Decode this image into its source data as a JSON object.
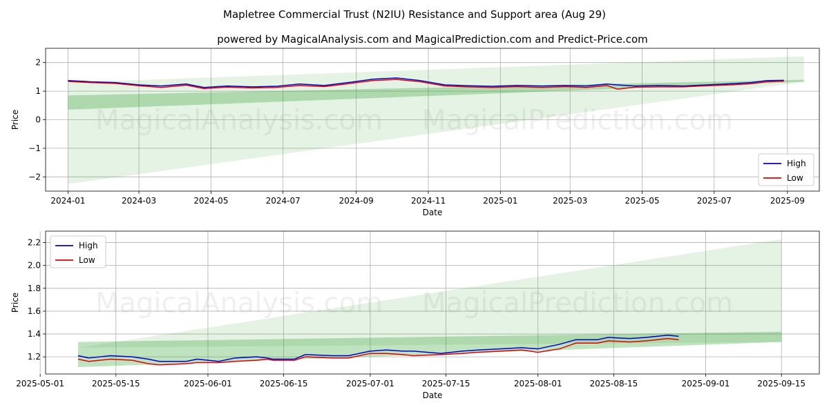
{
  "title": "Mapletree Commercial Trust (N2IU) Resistance and Support area (Aug 29)",
  "subtitle": "powered by MagicalAnalysis.com and MagicalPrediction.com and Predict-Price.com",
  "watermarks": [
    "MagicalAnalysis.com",
    "MagicalPrediction.com"
  ],
  "colors": {
    "high": "#0000cc",
    "low": "#dd0000",
    "band": "#2ca02c"
  },
  "chart_data": [
    {
      "type": "line",
      "xlabel": "Date",
      "ylabel": "Price",
      "x_axis": "date",
      "xlim": [
        "2023-12-13",
        "2025-09-28"
      ],
      "ylim": [
        -2.5,
        2.5
      ],
      "xticks": [
        "2024-01",
        "2024-03",
        "2024-05",
        "2024-07",
        "2024-09",
        "2024-11",
        "2025-01",
        "2025-03",
        "2025-05",
        "2025-07",
        "2025-09"
      ],
      "xtick_dates": [
        "2024-01-01",
        "2024-03-01",
        "2024-05-01",
        "2024-07-01",
        "2024-09-01",
        "2024-11-01",
        "2025-01-01",
        "2025-03-01",
        "2025-05-01",
        "2025-07-01",
        "2025-09-01"
      ],
      "yticks": [
        -2,
        -1,
        0,
        1,
        2
      ],
      "legend": [
        "High",
        "Low"
      ],
      "legend_position": "lower right",
      "grid": true,
      "bands": [
        {
          "start": "2024-01-01",
          "end": "2025-09-15",
          "lower": [
            -2.25,
            1.33
          ],
          "upper": [
            1.3,
            2.22
          ],
          "opacity": 0.12
        },
        {
          "start": "2024-01-01",
          "end": "2025-09-15",
          "lower": [
            0.35,
            1.33
          ],
          "upper": [
            0.85,
            1.4
          ],
          "opacity": 0.3
        }
      ],
      "series": [
        {
          "name": "High",
          "x": [
            "2024-01-01",
            "2024-01-20",
            "2024-02-10",
            "2024-03-01",
            "2024-03-20",
            "2024-04-10",
            "2024-04-25",
            "2024-05-15",
            "2024-06-05",
            "2024-06-25",
            "2024-07-15",
            "2024-08-05",
            "2024-08-25",
            "2024-09-15",
            "2024-10-05",
            "2024-10-25",
            "2024-11-15",
            "2024-12-05",
            "2024-12-25",
            "2025-01-15",
            "2025-02-05",
            "2025-02-25",
            "2025-03-15",
            "2025-04-01",
            "2025-04-10",
            "2025-04-25",
            "2025-05-15",
            "2025-06-05",
            "2025-06-25",
            "2025-07-15",
            "2025-08-01",
            "2025-08-15",
            "2025-08-29"
          ],
          "values": [
            1.37,
            1.33,
            1.3,
            1.22,
            1.18,
            1.25,
            1.13,
            1.18,
            1.15,
            1.17,
            1.25,
            1.2,
            1.3,
            1.42,
            1.46,
            1.37,
            1.22,
            1.19,
            1.17,
            1.2,
            1.18,
            1.2,
            1.18,
            1.25,
            1.22,
            1.18,
            1.2,
            1.18,
            1.22,
            1.26,
            1.3,
            1.37,
            1.38
          ]
        },
        {
          "name": "Low",
          "x": [
            "2024-01-01",
            "2024-01-20",
            "2024-02-10",
            "2024-03-01",
            "2024-03-20",
            "2024-04-10",
            "2024-04-25",
            "2024-05-15",
            "2024-06-05",
            "2024-06-25",
            "2024-07-15",
            "2024-08-05",
            "2024-08-25",
            "2024-09-15",
            "2024-10-05",
            "2024-10-25",
            "2024-11-15",
            "2024-12-05",
            "2024-12-25",
            "2025-01-15",
            "2025-02-05",
            "2025-02-25",
            "2025-03-15",
            "2025-04-01",
            "2025-04-10",
            "2025-04-25",
            "2025-05-15",
            "2025-06-05",
            "2025-06-25",
            "2025-07-15",
            "2025-08-01",
            "2025-08-15",
            "2025-08-29"
          ],
          "values": [
            1.34,
            1.3,
            1.27,
            1.19,
            1.13,
            1.21,
            1.09,
            1.14,
            1.11,
            1.13,
            1.2,
            1.16,
            1.26,
            1.37,
            1.41,
            1.33,
            1.18,
            1.15,
            1.13,
            1.16,
            1.13,
            1.16,
            1.13,
            1.2,
            1.07,
            1.14,
            1.15,
            1.15,
            1.19,
            1.22,
            1.26,
            1.33,
            1.35
          ]
        }
      ]
    },
    {
      "type": "line",
      "xlabel": "Date",
      "ylabel": "Price",
      "x_axis": "date",
      "xlim": [
        "2025-05-02",
        "2025-09-22"
      ],
      "ylim": [
        1.05,
        2.3
      ],
      "xticks": [
        "2025-05-01",
        "2025-05-15",
        "2025-06-01",
        "2025-06-15",
        "2025-07-01",
        "2025-07-15",
        "2025-08-01",
        "2025-08-15",
        "2025-09-01",
        "2025-09-15"
      ],
      "yticks": [
        "1.2",
        "1.4",
        "1.6",
        "1.8",
        "2.0",
        "2.2"
      ],
      "legend": [
        "High",
        "Low"
      ],
      "legend_position": "upper left",
      "grid": true,
      "bands": [
        {
          "start": "2025-05-08",
          "end": "2025-09-15",
          "lower": [
            1.28,
            1.33
          ],
          "upper": [
            1.28,
            2.23
          ],
          "opacity": 0.12
        },
        {
          "start": "2025-05-08",
          "end": "2025-09-15",
          "lower": [
            1.11,
            1.33
          ],
          "upper": [
            1.33,
            1.42
          ],
          "opacity": 0.3
        }
      ],
      "series": [
        {
          "name": "High",
          "x": [
            "2025-05-08",
            "2025-05-10",
            "2025-05-14",
            "2025-05-18",
            "2025-05-21",
            "2025-05-23",
            "2025-05-28",
            "2025-05-30",
            "2025-06-03",
            "2025-06-06",
            "2025-06-10",
            "2025-06-12",
            "2025-06-13",
            "2025-06-17",
            "2025-06-19",
            "2025-06-24",
            "2025-06-27",
            "2025-07-01",
            "2025-07-04",
            "2025-07-07",
            "2025-07-09",
            "2025-07-14",
            "2025-07-18",
            "2025-07-21",
            "2025-07-25",
            "2025-07-29",
            "2025-08-01",
            "2025-08-05",
            "2025-08-08",
            "2025-08-12",
            "2025-08-14",
            "2025-08-18",
            "2025-08-21",
            "2025-08-25",
            "2025-08-27"
          ],
          "values": [
            1.21,
            1.19,
            1.21,
            1.2,
            1.18,
            1.16,
            1.16,
            1.18,
            1.16,
            1.19,
            1.2,
            1.19,
            1.18,
            1.18,
            1.22,
            1.21,
            1.21,
            1.25,
            1.26,
            1.25,
            1.25,
            1.23,
            1.25,
            1.26,
            1.27,
            1.28,
            1.27,
            1.31,
            1.35,
            1.35,
            1.37,
            1.36,
            1.37,
            1.39,
            1.38
          ]
        },
        {
          "name": "Low",
          "x": [
            "2025-05-08",
            "2025-05-10",
            "2025-05-14",
            "2025-05-18",
            "2025-05-21",
            "2025-05-23",
            "2025-05-28",
            "2025-05-30",
            "2025-06-03",
            "2025-06-06",
            "2025-06-10",
            "2025-06-12",
            "2025-06-13",
            "2025-06-17",
            "2025-06-19",
            "2025-06-24",
            "2025-06-27",
            "2025-07-01",
            "2025-07-04",
            "2025-07-07",
            "2025-07-09",
            "2025-07-14",
            "2025-07-18",
            "2025-07-21",
            "2025-07-25",
            "2025-07-29",
            "2025-08-01",
            "2025-08-05",
            "2025-08-08",
            "2025-08-12",
            "2025-08-14",
            "2025-08-18",
            "2025-08-21",
            "2025-08-25",
            "2025-08-27"
          ],
          "values": [
            1.18,
            1.16,
            1.18,
            1.17,
            1.14,
            1.13,
            1.14,
            1.15,
            1.15,
            1.16,
            1.17,
            1.18,
            1.17,
            1.17,
            1.2,
            1.19,
            1.19,
            1.23,
            1.23,
            1.22,
            1.21,
            1.22,
            1.23,
            1.24,
            1.25,
            1.26,
            1.24,
            1.27,
            1.32,
            1.32,
            1.34,
            1.33,
            1.34,
            1.36,
            1.35
          ]
        }
      ]
    }
  ]
}
